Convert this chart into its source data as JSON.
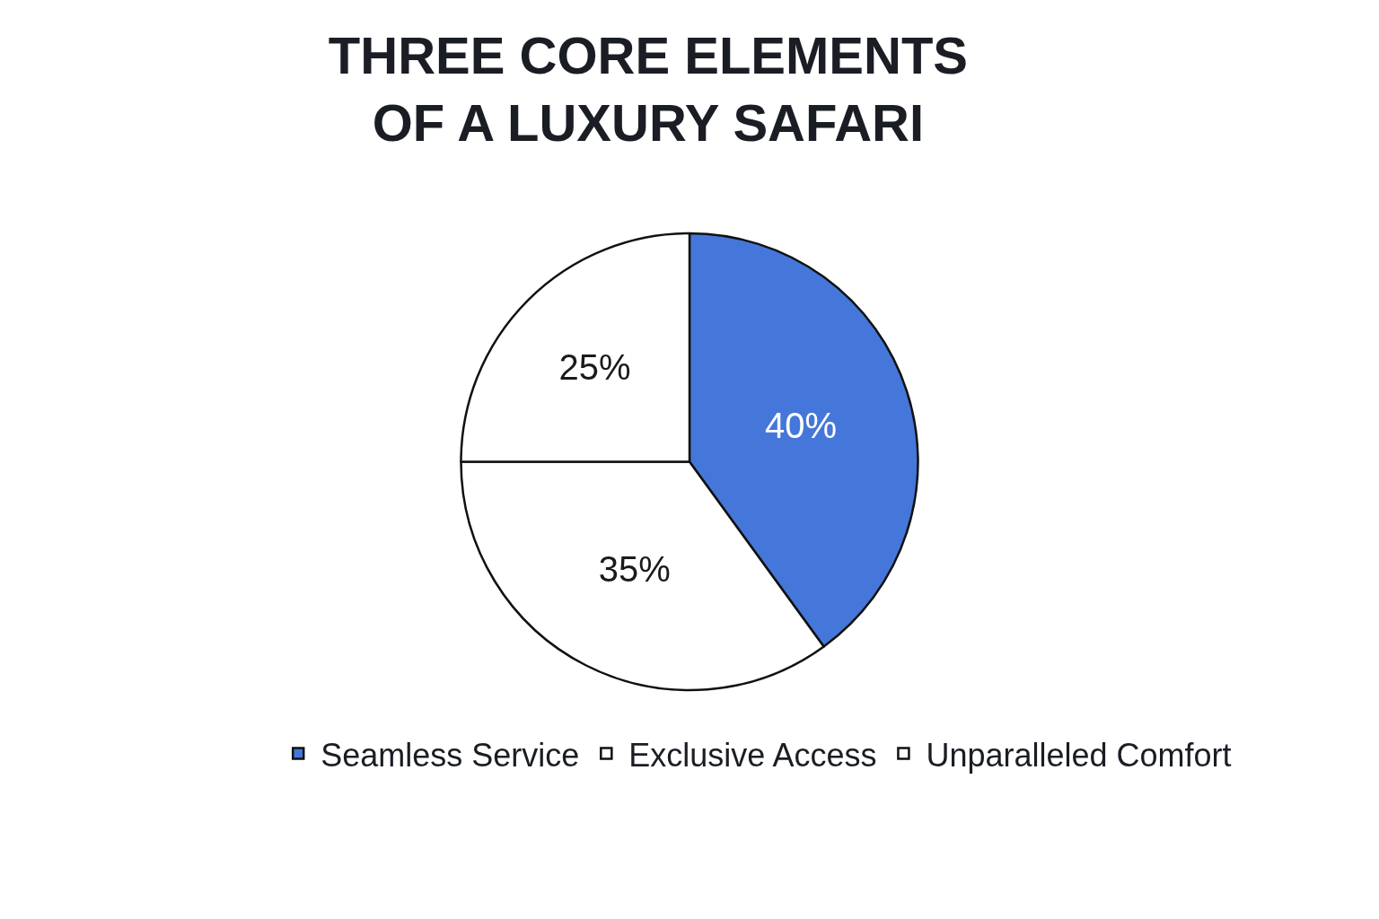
{
  "chart_data": {
    "type": "pie",
    "title": "THREE CORE ELEMENTS\nOF A LUXURY SAFARI",
    "categories": [
      "Seamless Service",
      "Exclusive Access",
      "Unparalleled Comfort"
    ],
    "values": [
      40,
      35,
      25
    ],
    "colors": [
      "#4477d9",
      "#ffffff",
      "#ffffff"
    ],
    "value_labels": [
      "40%",
      "35%",
      "25%"
    ],
    "legend": "bottom"
  }
}
